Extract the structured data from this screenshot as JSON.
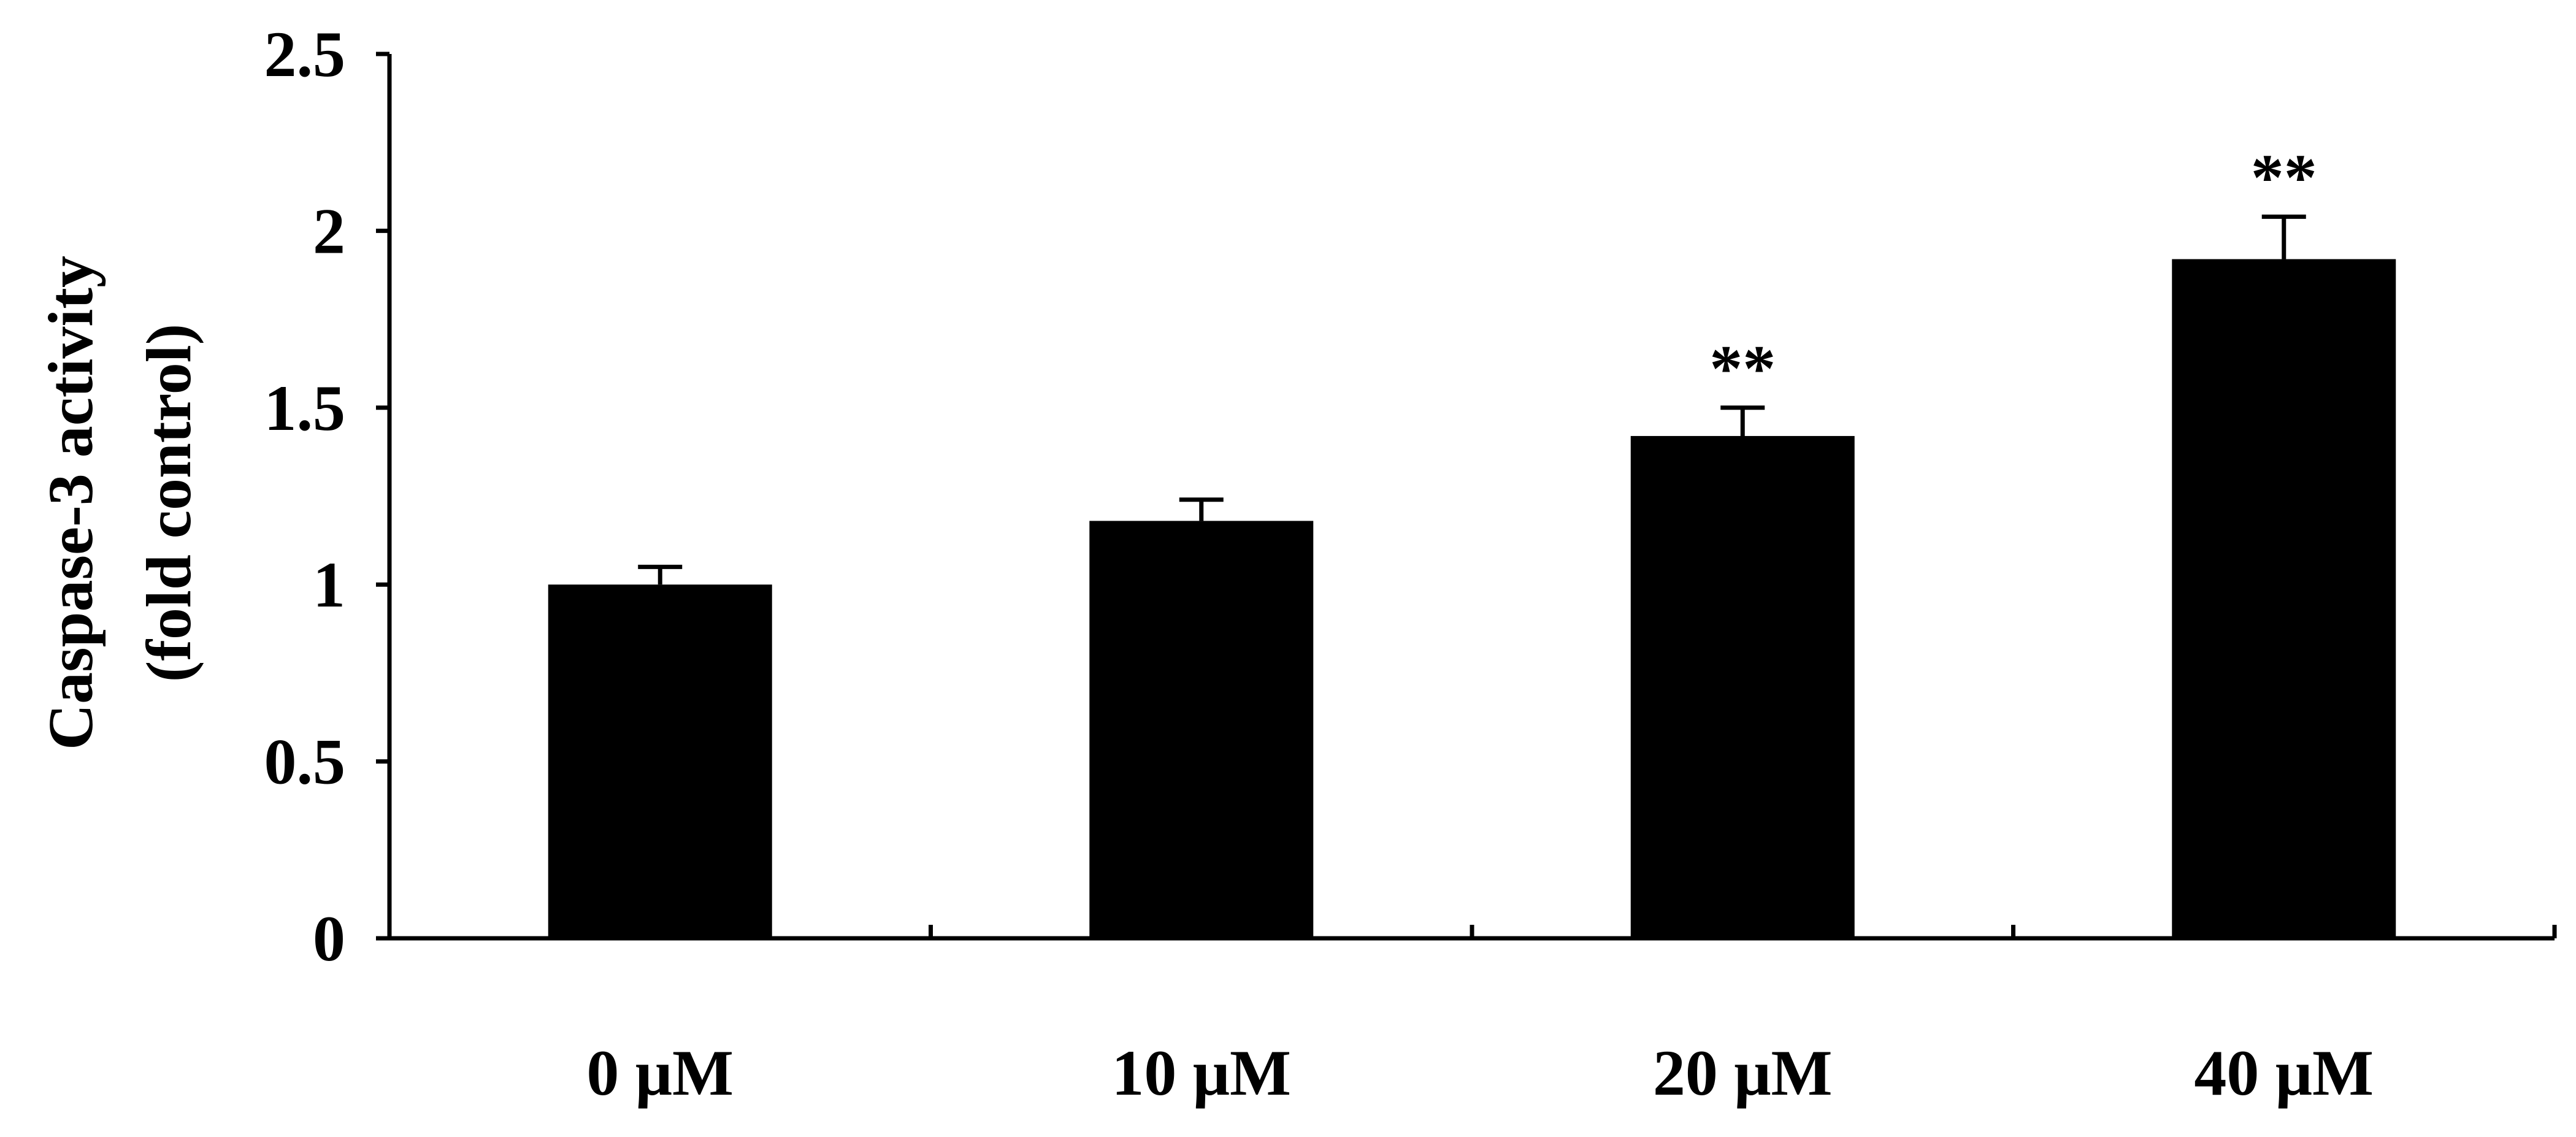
{
  "chart_data": {
    "type": "bar",
    "title": "",
    "xlabel": "",
    "ylabel_lines": [
      "Caspase-3 activity",
      "(fold control)"
    ],
    "categories": [
      "0 μM",
      "10 μM",
      "20 μM",
      "40 μM"
    ],
    "values": [
      1.0,
      1.18,
      1.42,
      1.92
    ],
    "errors": [
      0.05,
      0.06,
      0.08,
      0.12
    ],
    "significance": [
      "",
      "",
      "**",
      "**"
    ],
    "ylim": [
      0,
      2.5
    ],
    "yticks": [
      0,
      0.5,
      1,
      1.5,
      2,
      2.5
    ],
    "ytick_labels": [
      "0",
      "0.5",
      "1",
      "1.5",
      "2",
      "2.5"
    ],
    "grid": false,
    "legend": "none",
    "bar_color": "#000000",
    "axis_color": "#000000"
  }
}
